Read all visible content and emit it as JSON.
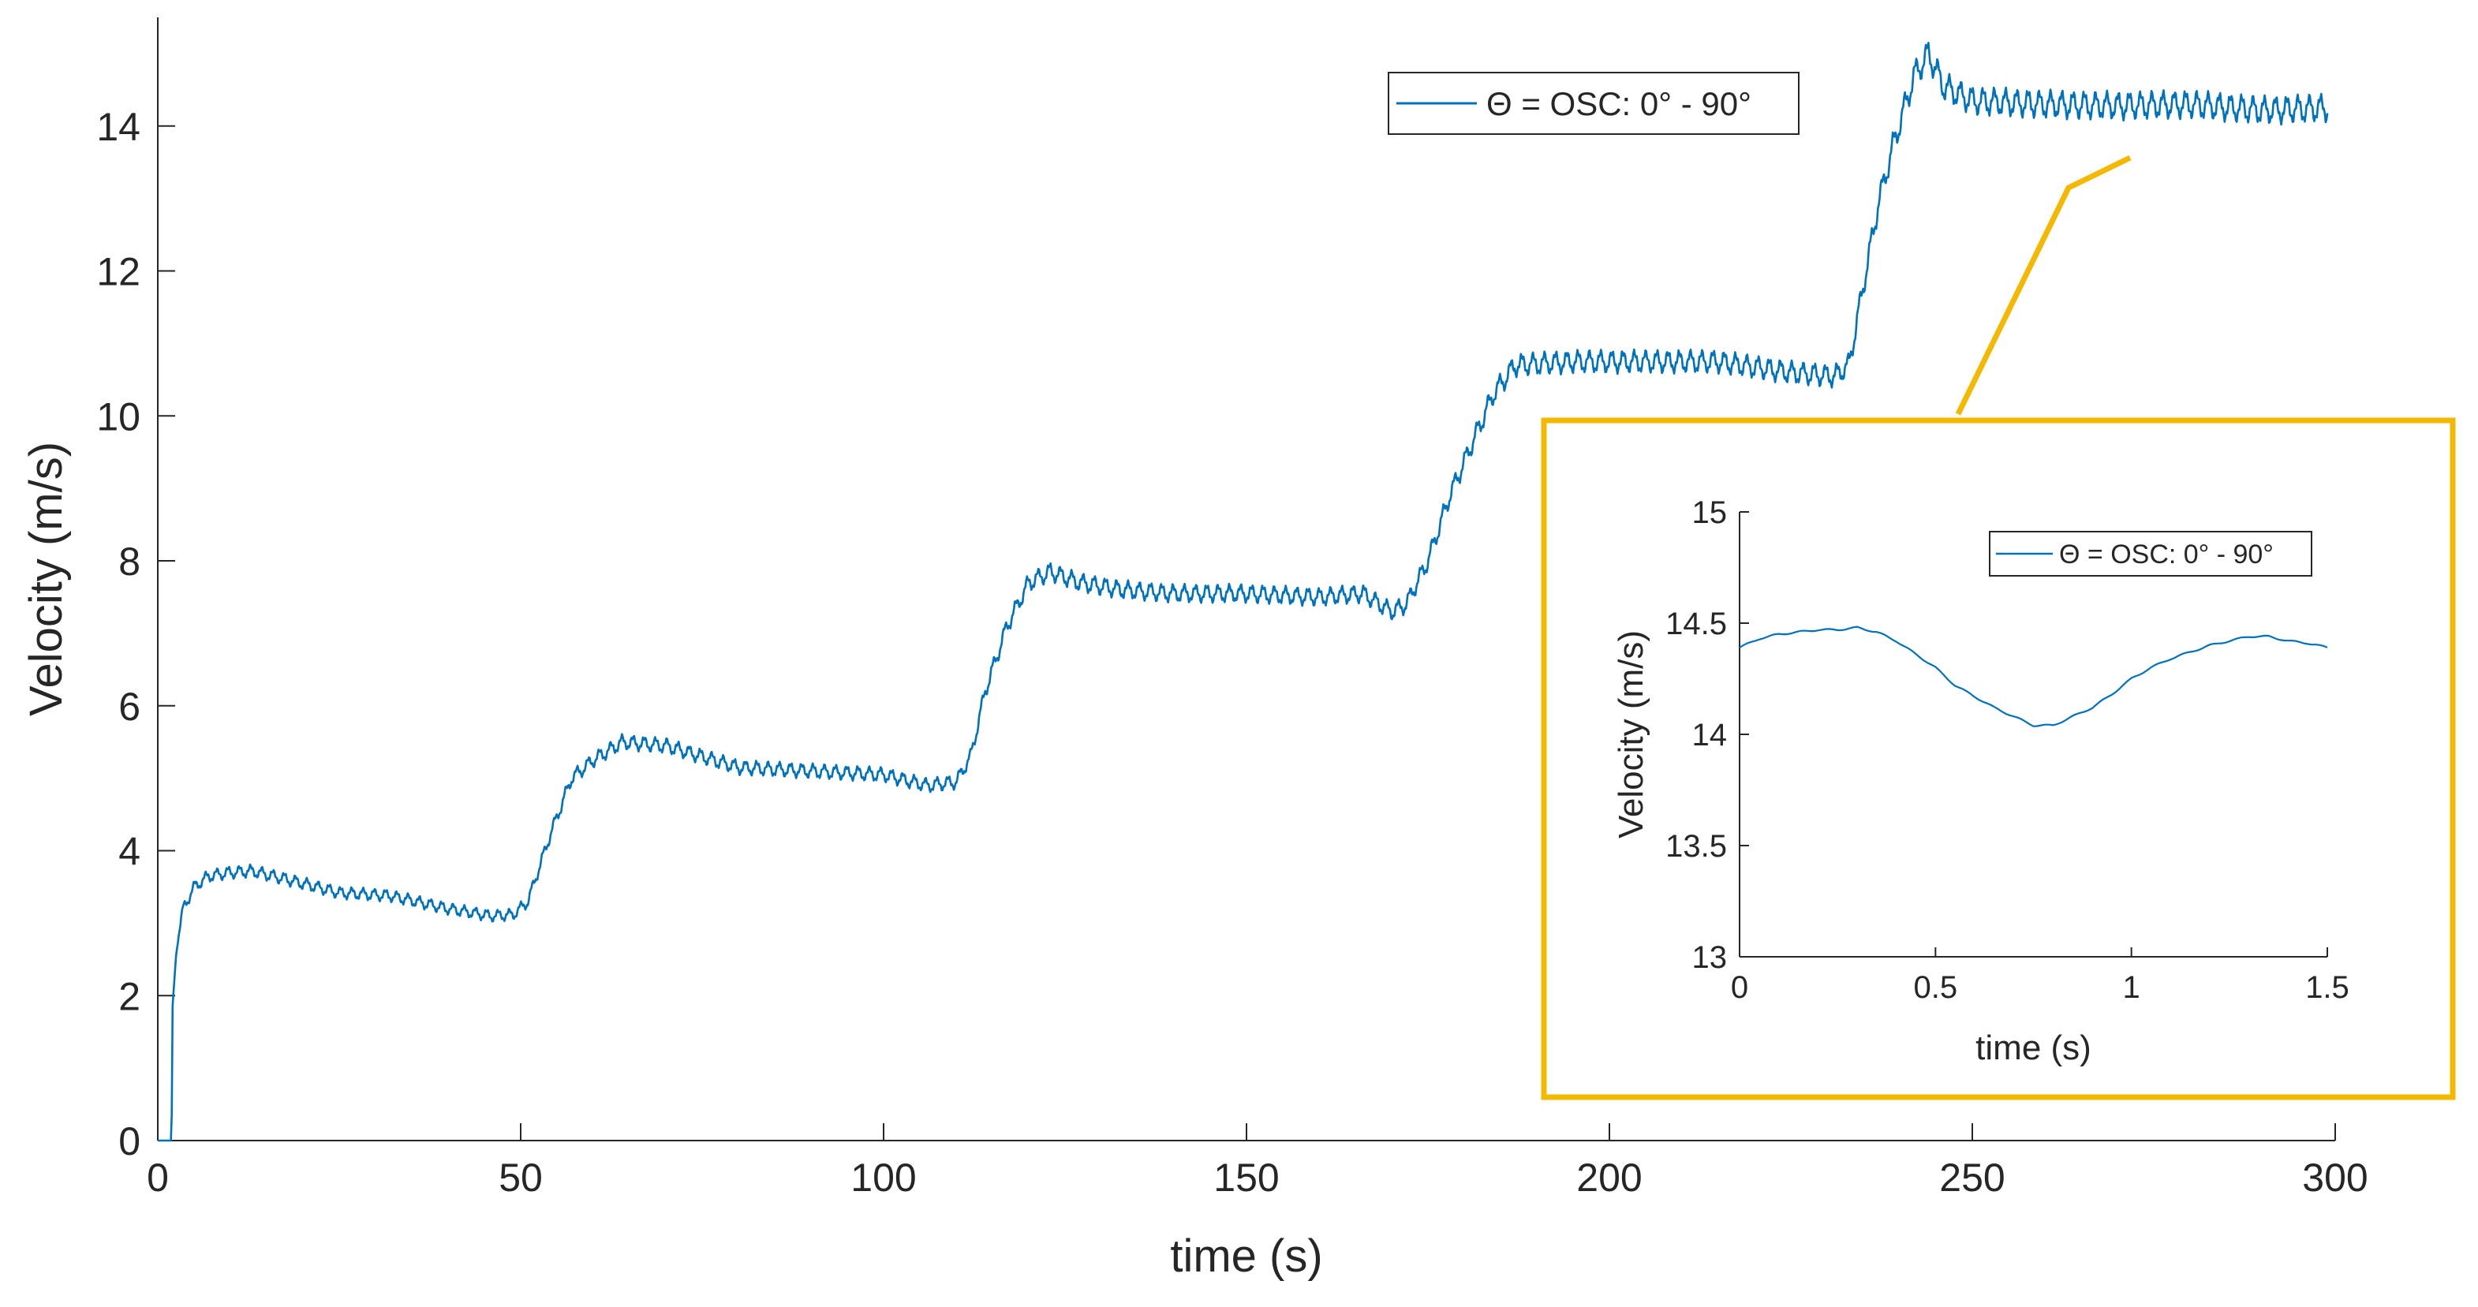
{
  "chart_data": [
    {
      "type": "line",
      "xlabel": "time (s)",
      "ylabel": "Velocity (m/s)",
      "xlim": [
        0,
        300
      ],
      "ylim": [
        0,
        15.5
      ],
      "xticks": [
        0,
        50,
        100,
        150,
        200,
        250,
        300
      ],
      "yticks": [
        0,
        2,
        4,
        6,
        8,
        10,
        12,
        14
      ],
      "legend": {
        "placement": "top-right",
        "entries": [
          "Θ = OSC: 0° - 90°"
        ]
      },
      "series": [
        {
          "name": "Θ = OSC: 0° - 90°",
          "color": "#0072BD",
          "x": [
            0,
            1.9,
            2.0,
            2.6,
            3.5,
            5,
            7,
            10,
            13,
            18,
            25,
            32,
            40,
            46,
            49,
            51,
            54,
            57,
            60,
            64,
            70,
            80,
            90,
            100,
            106,
            110,
            112,
            114,
            117,
            120,
            123,
            127,
            133,
            140,
            150,
            160,
            166,
            170,
            172,
            175,
            178,
            181,
            184,
            187,
            195,
            205,
            215,
            225,
            231,
            233,
            235,
            237,
            239,
            242,
            244,
            246,
            250,
            260,
            270,
            280,
            290,
            299
          ],
          "y": [
            0,
            0,
            1.8,
            2.7,
            3.2,
            3.5,
            3.65,
            3.7,
            3.72,
            3.6,
            3.42,
            3.38,
            3.2,
            3.1,
            3.12,
            3.3,
            4.2,
            5.0,
            5.25,
            5.5,
            5.45,
            5.15,
            5.1,
            5.05,
            4.9,
            4.95,
            5.3,
            6.2,
            7.1,
            7.7,
            7.85,
            7.7,
            7.6,
            7.55,
            7.55,
            7.5,
            7.55,
            7.3,
            7.4,
            8.0,
            8.9,
            9.6,
            10.3,
            10.7,
            10.75,
            10.75,
            10.75,
            10.6,
            10.55,
            10.7,
            11.8,
            12.9,
            13.7,
            14.7,
            15.0,
            14.55,
            14.35,
            14.3,
            14.28,
            14.3,
            14.22,
            14.25
          ]
        }
      ]
    },
    {
      "type": "line",
      "xlabel": "time (s)",
      "ylabel": "Velocity (m/s)",
      "xlim": [
        0,
        1.5
      ],
      "ylim": [
        13,
        15
      ],
      "xticks": [
        0,
        0.5,
        1,
        1.5
      ],
      "yticks": [
        13,
        13.5,
        14,
        14.5,
        15
      ],
      "legend": {
        "placement": "top-right",
        "entries": [
          "Θ = OSC: 0° - 90°"
        ]
      },
      "series": [
        {
          "name": "Θ = OSC: 0° - 90°",
          "color": "#0072BD",
          "x": [
            0,
            0.05,
            0.1,
            0.15,
            0.2,
            0.25,
            0.3,
            0.35,
            0.4,
            0.45,
            0.5,
            0.55,
            0.6,
            0.65,
            0.7,
            0.75,
            0.8,
            0.85,
            0.9,
            0.95,
            1.0,
            1.05,
            1.1,
            1.15,
            1.2,
            1.25,
            1.3,
            1.35,
            1.4,
            1.45,
            1.5
          ],
          "y": [
            14.39,
            14.43,
            14.45,
            14.46,
            14.47,
            14.47,
            14.48,
            14.46,
            14.42,
            14.36,
            14.3,
            14.22,
            14.17,
            14.12,
            14.08,
            14.04,
            14.04,
            14.08,
            14.12,
            14.18,
            14.25,
            14.3,
            14.34,
            14.37,
            14.4,
            14.42,
            14.44,
            14.44,
            14.42,
            14.41,
            14.39
          ]
        }
      ],
      "frame_color": "#F5B800"
    }
  ]
}
